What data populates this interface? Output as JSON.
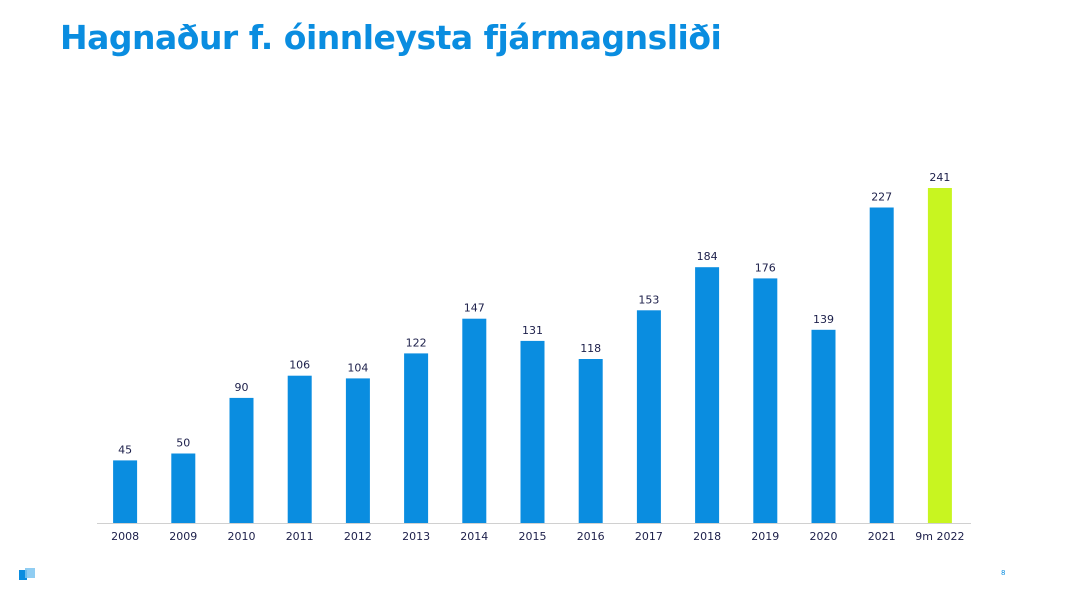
{
  "title": "Hagnaður f. óinnleysta fjármagnsliði",
  "page_number": "8",
  "colors": {
    "accent": "#0a8de0",
    "bar": "#0a8de0",
    "highlight": "#c8f520",
    "label": "#1c1f4a",
    "axis": "#d0d0d0"
  },
  "chart_data": {
    "type": "bar",
    "title": "",
    "xlabel": "",
    "ylabel": "",
    "categories": [
      "2008",
      "2009",
      "2010",
      "2011",
      "2012",
      "2013",
      "2014",
      "2015",
      "2016",
      "2017",
      "2018",
      "2019",
      "2020",
      "2021",
      "9m 2022"
    ],
    "values": [
      45,
      50,
      90,
      106,
      104,
      122,
      147,
      131,
      118,
      153,
      184,
      176,
      139,
      227,
      241
    ],
    "highlighted_category": "9m 2022",
    "ylim": [
      0,
      241
    ],
    "grid": false,
    "legend": "none"
  }
}
